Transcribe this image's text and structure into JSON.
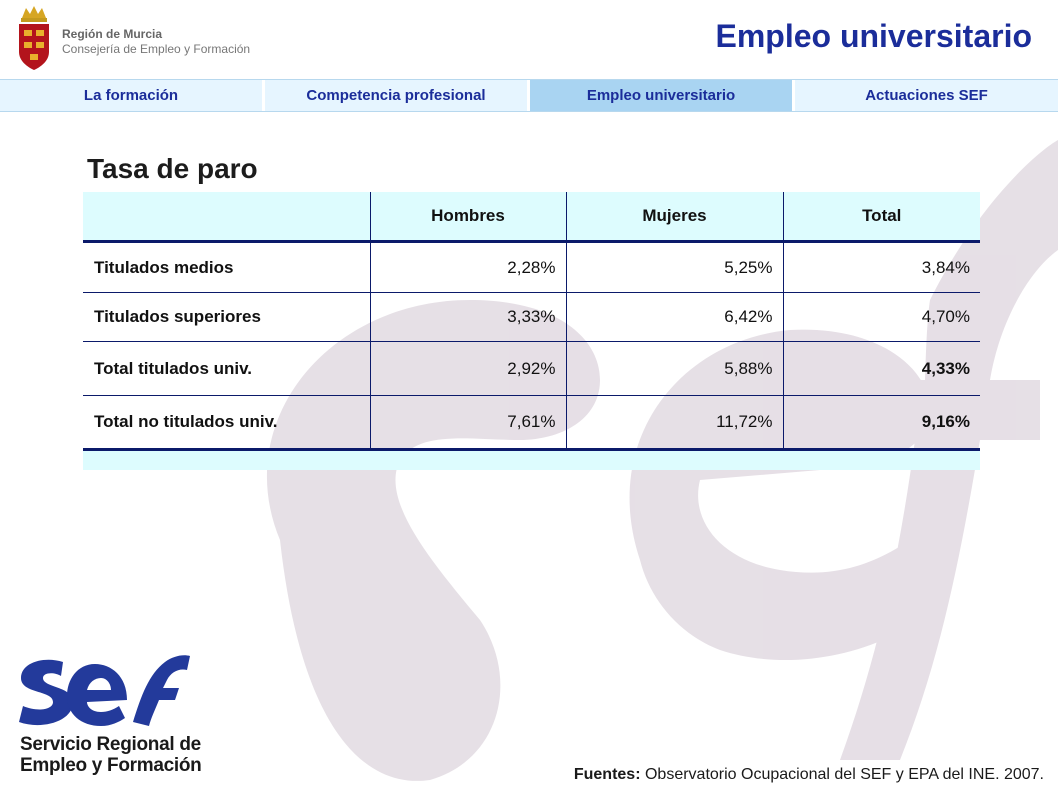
{
  "header": {
    "org_name": "Región de Murcia",
    "org_sub": "Consejería de Empleo y Formación",
    "title": "Empleo universitario"
  },
  "tabs": [
    {
      "label": "La formación",
      "active": false
    },
    {
      "label": "Competencia profesional",
      "active": false
    },
    {
      "label": "Empleo universitario",
      "active": true
    },
    {
      "label": "Actuaciones SEF",
      "active": false
    }
  ],
  "section_title": "Tasa de paro",
  "table": {
    "columns": [
      "",
      "Hombres",
      "Mujeres",
      "Total"
    ],
    "rows": [
      {
        "label": "Titulados medios",
        "hombres": "2,28%",
        "mujeres": "5,25%",
        "total": "3,84%"
      },
      {
        "label": "Titulados superiores",
        "hombres": "3,33%",
        "mujeres": "6,42%",
        "total": "4,70%"
      },
      {
        "label": "Total titulados univ.",
        "hombres": "2,92%",
        "mujeres": "5,88%",
        "total": "4,33%"
      },
      {
        "label": "Total no titulados univ.",
        "hombres": "7,61%",
        "mujeres": "11,72%",
        "total": "9,16%"
      }
    ]
  },
  "footer_logo": {
    "mark": "sef",
    "line1": "Servicio Regional de",
    "line2": "Empleo y Formación"
  },
  "sources": {
    "label": "Fuentes:",
    "text": "Observatorio Ocupacional del SEF y EPA del INE. 2007."
  },
  "colors": {
    "title_blue": "#1b2d9a",
    "tab_bg": "#e6f5ff",
    "tab_active": "#a9d4f2",
    "table_header_bg": "#ddfcfe",
    "table_rule": "#0b1a6a",
    "sef_blue": "#233a9b",
    "watermark": "#d9cfd9"
  },
  "icons": [
    "murcia-crest-icon",
    "sef-logo-icon"
  ]
}
